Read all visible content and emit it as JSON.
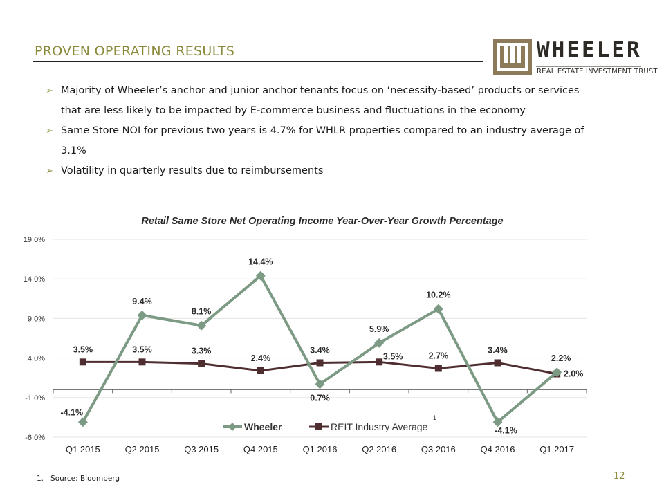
{
  "slide": {
    "title": "PROVEN OPERATING RESULTS",
    "page_number": "12"
  },
  "logo": {
    "name": "WHEELER",
    "subtitle": "REAL ESTATE INVESTMENT TRUST"
  },
  "bullets": [
    "Majority of Wheeler’s anchor and junior anchor tenants focus on ‘necessity-based’ products or services that are less likely to be impacted by E-commerce business and fluctuations in the economy",
    "Same Store NOI for previous two years is 4.7% for WHLR properties compared to an industry average of 3.1%",
    "Volatility in quarterly results due to reimbursements"
  ],
  "footnote": {
    "number": "1.",
    "text": "Source: Bloomberg"
  },
  "colors": {
    "accent": "#8a8a3a",
    "wheeler": "#7c9a84",
    "reit": "#4e2e30"
  },
  "chart_data": {
    "type": "line",
    "title": "Retail Same Store Net Operating Income Year-Over-Year Growth Percentage",
    "categories": [
      "Q1 2015",
      "Q2 2015",
      "Q3 2015",
      "Q4 2015",
      "Q1 2016",
      "Q2 2016",
      "Q3 2016",
      "Q4 2016",
      "Q1 2017"
    ],
    "series": [
      {
        "name": "Wheeler",
        "values": [
          -4.1,
          9.4,
          8.1,
          14.4,
          0.7,
          5.9,
          10.2,
          -4.1,
          2.2
        ],
        "labels": [
          "-4.1%",
          "9.4%",
          "8.1%",
          "14.4%",
          "0.7%",
          "5.9%",
          "10.2%",
          "-4.1%",
          "2.2%"
        ]
      },
      {
        "name": "REIT Industry Average",
        "footnote_ref": "1",
        "values": [
          3.5,
          3.5,
          3.3,
          2.4,
          3.4,
          3.5,
          2.7,
          3.4,
          2.0
        ],
        "labels": [
          "3.5%",
          "3.5%",
          "3.3%",
          "2.4%",
          "3.4%",
          "3.5%",
          "2.7%",
          "3.4%",
          "2.0%"
        ]
      }
    ],
    "yticks": [
      -6.0,
      -1.0,
      4.0,
      9.0,
      14.0,
      19.0
    ],
    "ytick_labels": [
      "-6.0%",
      "-1.0%",
      "4.0%",
      "9.0%",
      "14.0%",
      "19.0%"
    ],
    "ylim": [
      -6.0,
      19.0
    ],
    "xlabel": "",
    "ylabel": "",
    "grid": true,
    "legend": "bottom-center"
  }
}
